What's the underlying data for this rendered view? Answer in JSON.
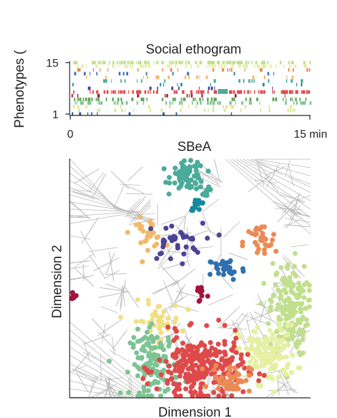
{
  "colors": {
    "c1": "#4a4397",
    "c2": "#2e6fb0",
    "c3": "#138a9f",
    "c4": "#4aab9a",
    "c5": "#7ec394",
    "c6": "#c1df8d",
    "c7": "#e6f0a2",
    "c8": "#f1df85",
    "c9": "#f2b86a",
    "c10": "#eb8a55",
    "c11": "#de4a4a",
    "c12": "#a4143d",
    "c13": "#2d4f9a",
    "c14": "#d3ec91",
    "c15": "#63a75b",
    "cell_edges": "#b8b8b8",
    "axis": "#222222"
  },
  "chart_data": [
    {
      "type": "raster",
      "title": "Social ethogram",
      "ylabel": "Phenotypes (",
      "xlabel": "",
      "yticks": [
        "1",
        "15"
      ],
      "xticks": [
        "0",
        "15 min"
      ],
      "xlim": [
        0,
        15
      ],
      "ylim": [
        1,
        15
      ],
      "rows": [
        {
          "row": 15,
          "color": "c6",
          "density": 0.55
        },
        {
          "row": 14,
          "color": "c7",
          "density": 0.35
        },
        {
          "row": 13,
          "color": "c10",
          "density": 0.12
        },
        {
          "row": 12,
          "color": "c2",
          "density": 0.08
        },
        {
          "row": 11,
          "color": "c9",
          "density": 0.1
        },
        {
          "row": 10,
          "color": "c4",
          "density": 0.12
        },
        {
          "row": 9,
          "color": "c3",
          "density": 0.05
        },
        {
          "row": 8,
          "color": "c1",
          "density": 0.06
        },
        {
          "row": 7,
          "color": "c11",
          "density": 0.5
        },
        {
          "row": 6,
          "color": "c12",
          "density": 0.08
        },
        {
          "row": 5,
          "color": "c15",
          "density": 0.35
        },
        {
          "row": 4,
          "color": "c5",
          "density": 0.3
        },
        {
          "row": 3,
          "color": "c8",
          "density": 0.1
        },
        {
          "row": 2,
          "color": "c14",
          "density": 0.12
        },
        {
          "row": 1,
          "color": "c13",
          "density": 0.05
        }
      ]
    },
    {
      "type": "scatter",
      "title": "SBeA",
      "xlabel": "Dimension 1",
      "ylabel": "Dimension 2",
      "xlim": [
        0,
        1
      ],
      "ylim": [
        0,
        1
      ],
      "clusters": [
        {
          "color": "c4",
          "center": [
            0.49,
            0.93
          ],
          "spread": [
            0.035,
            0.03
          ],
          "n": 70
        },
        {
          "color": "c4",
          "center": [
            0.57,
            0.86
          ],
          "spread": [
            0.01,
            0.01
          ],
          "n": 10
        },
        {
          "color": "c3",
          "center": [
            0.53,
            0.81
          ],
          "spread": [
            0.015,
            0.012
          ],
          "n": 16
        },
        {
          "color": "c9",
          "center": [
            0.32,
            0.69
          ],
          "spread": [
            0.035,
            0.03
          ],
          "n": 28
        },
        {
          "color": "c1",
          "center": [
            0.43,
            0.65
          ],
          "spread": [
            0.06,
            0.04
          ],
          "n": 35
        },
        {
          "color": "c10",
          "center": [
            0.79,
            0.65
          ],
          "spread": [
            0.035,
            0.04
          ],
          "n": 30
        },
        {
          "color": "c2",
          "center": [
            0.65,
            0.54
          ],
          "spread": [
            0.04,
            0.025
          ],
          "n": 35
        },
        {
          "color": "c12",
          "center": [
            0.54,
            0.44
          ],
          "spread": [
            0.015,
            0.025
          ],
          "n": 10
        },
        {
          "color": "c12",
          "center": [
            0.015,
            0.43
          ],
          "spread": [
            0.006,
            0.01
          ],
          "n": 8
        },
        {
          "color": "c6",
          "center": [
            0.91,
            0.37
          ],
          "spread": [
            0.04,
            0.1
          ],
          "n": 170
        },
        {
          "color": "c7",
          "center": [
            0.82,
            0.18
          ],
          "spread": [
            0.06,
            0.06
          ],
          "n": 140
        },
        {
          "color": "c8",
          "center": [
            0.36,
            0.32
          ],
          "spread": [
            0.05,
            0.04
          ],
          "n": 45
        },
        {
          "color": "c5",
          "center": [
            0.35,
            0.14
          ],
          "spread": [
            0.05,
            0.07
          ],
          "n": 130
        },
        {
          "color": "c11",
          "center": [
            0.54,
            0.12
          ],
          "spread": [
            0.09,
            0.07
          ],
          "n": 260
        },
        {
          "color": "c10",
          "center": [
            0.67,
            0.08
          ],
          "spread": [
            0.04,
            0.03
          ],
          "n": 50
        }
      ]
    }
  ]
}
